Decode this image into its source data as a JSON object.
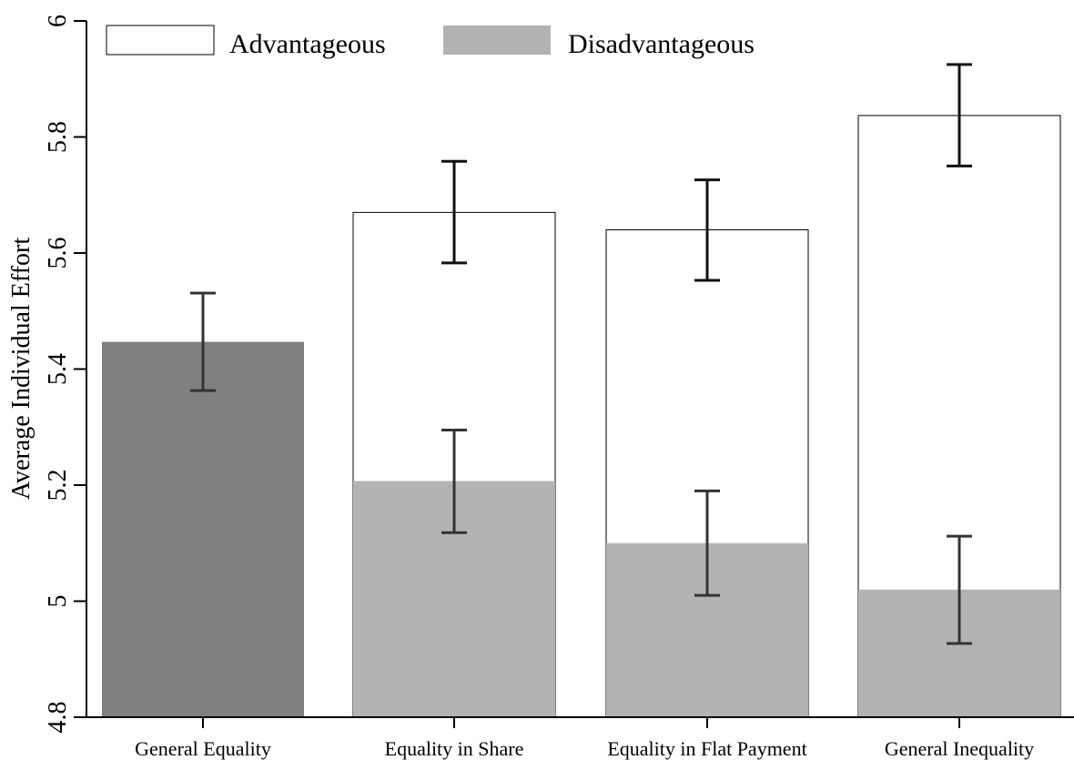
{
  "chart_data": {
    "type": "bar",
    "title": "",
    "xlabel": "",
    "ylabel": "Average Individual Effort",
    "ylim": [
      4.8,
      6.0
    ],
    "yticks": [
      4.8,
      5,
      5.2,
      5.4,
      5.6,
      5.8,
      6
    ],
    "ytick_labels": [
      "4.8",
      "5",
      "5.2",
      "5.4",
      "5.6",
      "5.8",
      "6"
    ],
    "categories": [
      "General Equality",
      "Equality in Share",
      "Equality in Flat Payment",
      "General Inequality"
    ],
    "legend_position": "top-left",
    "legend": [
      {
        "label": "Advantageous",
        "color": "#ffffff"
      },
      {
        "label": "Disadvantageous",
        "color": "#b3b3b3"
      }
    ],
    "series": [
      {
        "name": "Advantageous",
        "color": "#ffffff",
        "values": [
          null,
          5.67,
          5.64,
          5.837
        ],
        "ci_low": [
          null,
          5.583,
          5.553,
          5.75
        ],
        "ci_high": [
          null,
          5.758,
          5.726,
          5.925
        ]
      },
      {
        "name": "Disadvantageous",
        "color": "#b3b3b3",
        "values": [
          null,
          5.207,
          5.1,
          5.02
        ],
        "ci_low": [
          null,
          5.118,
          5.01,
          4.927
        ],
        "ci_high": [
          null,
          5.295,
          5.19,
          5.112
        ]
      },
      {
        "name": "",
        "color": "#808080",
        "values": [
          5.447,
          null,
          null,
          null
        ],
        "ci_low": [
          5.363,
          null,
          null,
          null
        ],
        "ci_high": [
          5.531,
          null,
          null,
          null
        ]
      }
    ],
    "grid": false
  }
}
